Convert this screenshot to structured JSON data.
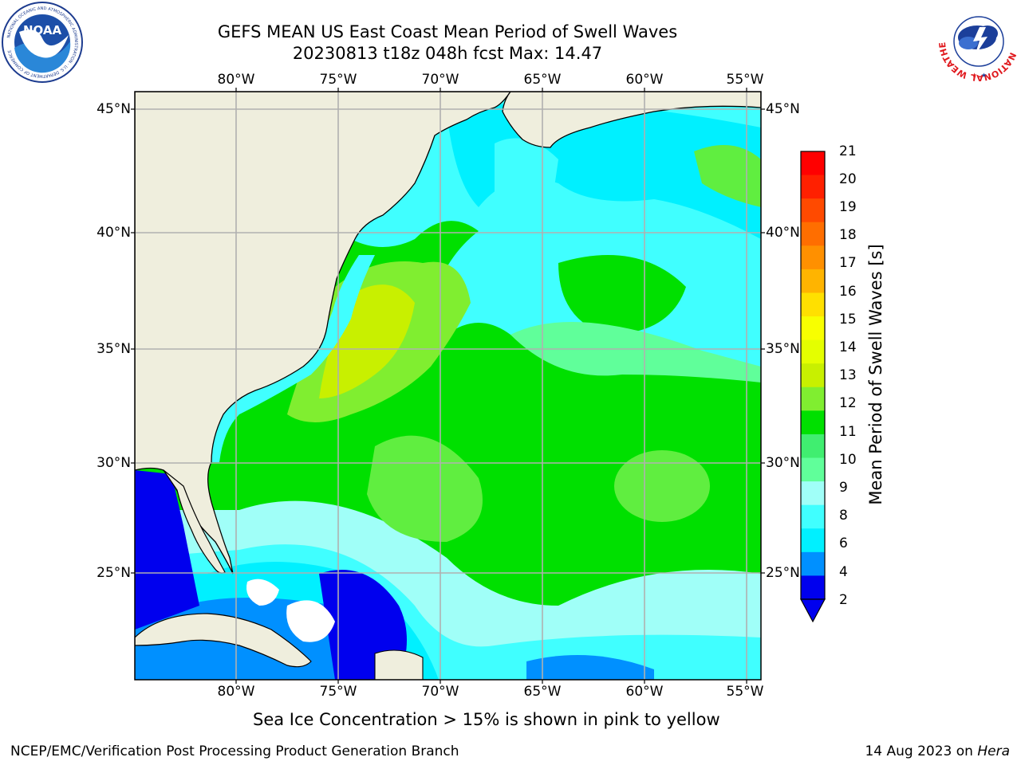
{
  "header": {
    "title_line1": "GEFS MEAN US East Coast Mean Period of Swell Waves",
    "title_line2": "20230813 t18z 048h fcst   Max: 14.47"
  },
  "logos": {
    "noaa_text": "NOAA",
    "noaa_ring_text": "NATIONAL OCEANIC AND ATMOSPHERIC ADMINISTRATION · U.S. DEPARTMENT OF COMMERCE",
    "nws_ring_text": "NATIONAL WEATHER SERVICE"
  },
  "map": {
    "lon_labels": [
      "80°W",
      "75°W",
      "70°W",
      "65°W",
      "60°W",
      "55°W"
    ],
    "lat_labels": [
      "45°N",
      "40°N",
      "35°N",
      "30°N",
      "25°N"
    ],
    "land_color": "#efeedd",
    "grid_color": "#b0b0b0"
  },
  "colorbar": {
    "label": "Mean Period of Swell Waves [s]",
    "ticks": [
      "21",
      "20",
      "19",
      "18",
      "17",
      "16",
      "15",
      "14",
      "13",
      "12",
      "11",
      "10",
      "9",
      "8",
      "6",
      "4",
      "2"
    ],
    "colors_top_to_bottom": [
      "#ff0000",
      "#ff2000",
      "#ff4a00",
      "#ff6e00",
      "#ff9000",
      "#ffb400",
      "#ffe000",
      "#f8ff00",
      "#e4ff00",
      "#c8f000",
      "#80ee30",
      "#00e000",
      "#40ee70",
      "#60ff9a",
      "#a0fff8",
      "#40ffff",
      "#00f0ff",
      "#0090ff",
      "#0000ee"
    ]
  },
  "footer": {
    "note": "Sea Ice Concentration > 15% is shown in pink to yellow",
    "credit": "NCEP/EMC/Verification Post Processing Product Generation Branch",
    "date": "14 Aug 2023 on ",
    "machine": "Hera"
  }
}
